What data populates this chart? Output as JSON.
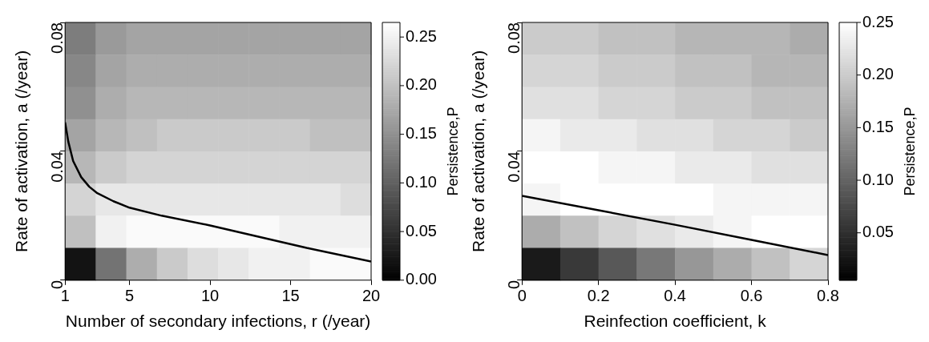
{
  "chart_data": [
    {
      "type": "heatmap",
      "xlabel": "Number of secondary infections, r (/year)",
      "ylabel": "Rate of activation, a (/year)",
      "clabel": "Persistence,P",
      "x": [
        1.95,
        3.85,
        5.75,
        7.65,
        9.55,
        11.45,
        13.35,
        15.25,
        17.15,
        19.05
      ],
      "y": [
        0.075,
        0.065,
        0.055,
        0.045,
        0.035,
        0.025,
        0.015,
        0.005
      ],
      "cells": [
        [
          0.13,
          0.16,
          0.17,
          0.17,
          0.17,
          0.17,
          0.17,
          0.17,
          0.17,
          0.17
        ],
        [
          0.14,
          0.17,
          0.18,
          0.18,
          0.18,
          0.18,
          0.18,
          0.18,
          0.18,
          0.18
        ],
        [
          0.15,
          0.18,
          0.19,
          0.19,
          0.19,
          0.19,
          0.19,
          0.19,
          0.19,
          0.19
        ],
        [
          0.17,
          0.19,
          0.2,
          0.21,
          0.21,
          0.21,
          0.21,
          0.21,
          0.2,
          0.2
        ],
        [
          0.19,
          0.21,
          0.22,
          0.22,
          0.22,
          0.22,
          0.22,
          0.22,
          0.22,
          0.22
        ],
        [
          0.22,
          0.24,
          0.24,
          0.24,
          0.24,
          0.24,
          0.24,
          0.24,
          0.24,
          0.23
        ],
        [
          0.2,
          0.25,
          0.26,
          0.26,
          0.26,
          0.26,
          0.26,
          0.25,
          0.25,
          0.25
        ],
        [
          0.02,
          0.12,
          0.18,
          0.21,
          0.23,
          0.24,
          0.25,
          0.25,
          0.26,
          0.26
        ]
      ],
      "clim": [
        0,
        0.265
      ],
      "cticks": [
        {
          "value": 0,
          "label": "0.00"
        },
        0.05,
        {
          "value": 0.1,
          "label": "0.10"
        },
        0.15,
        {
          "value": 0.2,
          "label": "0.20"
        },
        0.25
      ],
      "xlim": [
        1,
        20
      ],
      "xticks": [
        1,
        5,
        10,
        15,
        20
      ],
      "ylim": [
        0,
        0.08
      ],
      "yticks": [
        0,
        0.04,
        0.08
      ],
      "series": [
        {
          "type": "line",
          "color": "#000000",
          "x": [
            1,
            1.2,
            1.5,
            2,
            2.5,
            3,
            4,
            5,
            7,
            10,
            13,
            16,
            20
          ],
          "values": [
            0.049,
            0.043,
            0.037,
            0.032,
            0.029,
            0.027,
            0.0245,
            0.0225,
            0.02,
            0.017,
            0.0135,
            0.01,
            0.0058
          ]
        }
      ]
    },
    {
      "type": "heatmap",
      "xlabel": "Reinfection coefficient, k",
      "ylabel": "Rate of activation, a (/year)",
      "clabel": "Persistence,P",
      "x": [
        0.05,
        0.15,
        0.25,
        0.35,
        0.45,
        0.55,
        0.65,
        0.75
      ],
      "y": [
        0.075,
        0.065,
        0.055,
        0.045,
        0.035,
        0.025,
        0.015,
        0.005
      ],
      "cells": [
        [
          0.2,
          0.2,
          0.19,
          0.19,
          0.18,
          0.18,
          0.18,
          0.17
        ],
        [
          0.21,
          0.21,
          0.2,
          0.2,
          0.19,
          0.19,
          0.18,
          0.18
        ],
        [
          0.22,
          0.22,
          0.21,
          0.21,
          0.2,
          0.2,
          0.19,
          0.19
        ],
        [
          0.24,
          0.23,
          0.23,
          0.22,
          0.22,
          0.21,
          0.21,
          0.2
        ],
        [
          0.25,
          0.25,
          0.24,
          0.24,
          0.23,
          0.23,
          0.22,
          0.22
        ],
        [
          0.24,
          0.25,
          0.25,
          0.25,
          0.25,
          0.24,
          0.24,
          0.24
        ],
        [
          0.17,
          0.19,
          0.21,
          0.22,
          0.23,
          0.24,
          0.25,
          0.25
        ],
        [
          0.03,
          0.06,
          0.09,
          0.12,
          0.15,
          0.17,
          0.19,
          0.21
        ]
      ],
      "clim": [
        0.005,
        0.25
      ],
      "cticks": [
        0.05,
        {
          "value": 0.1,
          "label": "0.10"
        },
        0.15,
        {
          "value": 0.2,
          "label": "0.20"
        },
        0.25
      ],
      "xlim": [
        0,
        0.8
      ],
      "xticks": [
        0,
        0.2,
        0.4,
        0.6,
        0.8
      ],
      "ylim": [
        0,
        0.08
      ],
      "yticks": [
        0,
        0.04,
        0.08
      ],
      "series": [
        {
          "type": "line",
          "color": "#000000",
          "x": [
            0,
            0.2,
            0.4,
            0.6,
            0.8
          ],
          "values": [
            0.0262,
            0.0217,
            0.0172,
            0.0125,
            0.0078
          ]
        }
      ]
    }
  ]
}
